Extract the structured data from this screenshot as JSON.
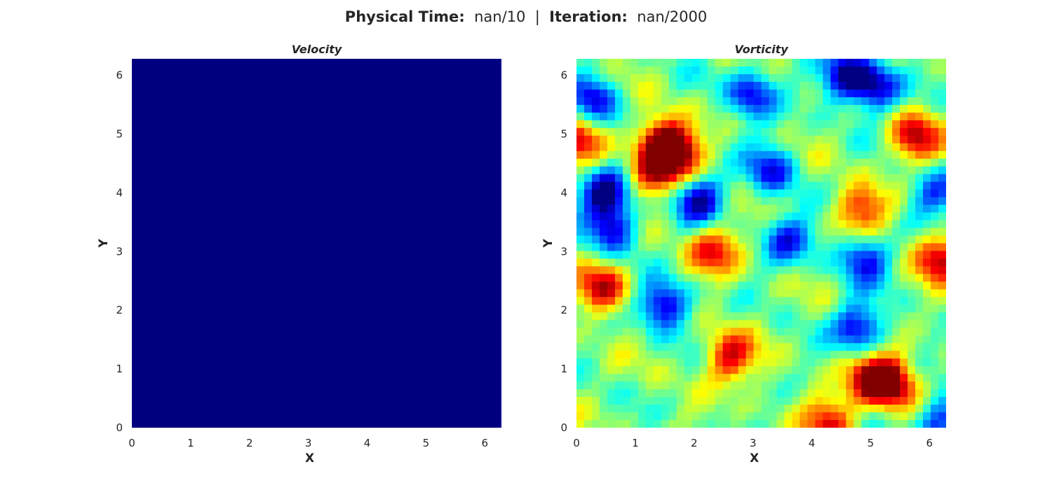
{
  "header": {
    "time_label": "Physical Time",
    "time_value": "nan/10",
    "sep": "|",
    "iter_label": "Iteration",
    "iter_value": "nan/2000"
  },
  "chart_data": [
    {
      "type": "heatmap",
      "title": "Velocity",
      "xlabel": "X",
      "ylabel": "Y",
      "xlim": [
        0,
        6.283
      ],
      "ylim": [
        0,
        6.283
      ],
      "xticks": [
        "0",
        "1",
        "2",
        "3",
        "4",
        "5",
        "6"
      ],
      "yticks": [
        "0",
        "1",
        "2",
        "3",
        "4",
        "5",
        "6"
      ],
      "colormap": "jet",
      "field": "uniform",
      "fill_color": "#00007f"
    },
    {
      "type": "heatmap",
      "title": "Vorticity",
      "xlabel": "X",
      "ylabel": "Y",
      "xlim": [
        0,
        6.283
      ],
      "ylim": [
        0,
        6.283
      ],
      "xticks": [
        "0",
        "1",
        "2",
        "3",
        "4",
        "5",
        "6"
      ],
      "yticks": [
        "0",
        "1",
        "2",
        "3",
        "4",
        "5",
        "6"
      ],
      "colormap": "jet",
      "field": "random turbulent vorticity",
      "hotspots": [
        {
          "x": 1.45,
          "y": 4.85,
          "v": 1.0
        },
        {
          "x": 1.7,
          "y": 4.65,
          "v": 0.85
        },
        {
          "x": 1.3,
          "y": 4.3,
          "v": 0.7
        },
        {
          "x": 5.35,
          "y": 0.75,
          "v": 1.0
        },
        {
          "x": 5.0,
          "y": 0.85,
          "v": 0.8
        },
        {
          "x": 5.75,
          "y": 4.95,
          "v": 0.85
        },
        {
          "x": 6.2,
          "y": 2.9,
          "v": 0.85
        },
        {
          "x": 0.45,
          "y": 2.4,
          "v": 0.85
        },
        {
          "x": 2.6,
          "y": 1.2,
          "v": 0.8
        },
        {
          "x": 2.35,
          "y": 3.0,
          "v": 0.75
        },
        {
          "x": 4.85,
          "y": 3.7,
          "v": 0.7
        },
        {
          "x": 4.3,
          "y": 0.1,
          "v": 0.75
        },
        {
          "x": 0.05,
          "y": 4.85,
          "v": 0.7
        },
        {
          "x": 0.5,
          "y": 4.0,
          "v": -1.0
        },
        {
          "x": 0.6,
          "y": 3.4,
          "v": -0.8
        },
        {
          "x": 1.5,
          "y": 2.1,
          "v": -0.9
        },
        {
          "x": 2.1,
          "y": 3.9,
          "v": -0.85
        },
        {
          "x": 3.0,
          "y": 5.7,
          "v": -0.8
        },
        {
          "x": 4.6,
          "y": 6.0,
          "v": -0.9
        },
        {
          "x": 5.1,
          "y": 5.8,
          "v": -0.85
        },
        {
          "x": 4.8,
          "y": 1.7,
          "v": -0.85
        },
        {
          "x": 4.9,
          "y": 2.9,
          "v": -0.75
        },
        {
          "x": 3.6,
          "y": 3.2,
          "v": -0.7
        },
        {
          "x": 0.3,
          "y": 5.6,
          "v": -0.75
        },
        {
          "x": 6.2,
          "y": 0.1,
          "v": -0.8
        },
        {
          "x": 3.3,
          "y": 4.4,
          "v": -0.7
        },
        {
          "x": 6.1,
          "y": 4.0,
          "v": -0.6
        }
      ]
    }
  ]
}
